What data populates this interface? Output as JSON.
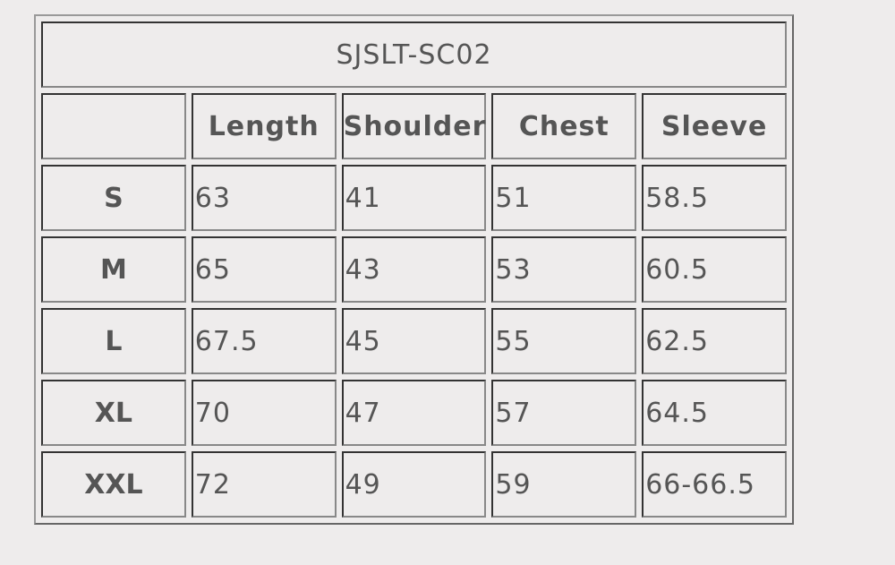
{
  "title": "SJSLT-SC02",
  "headers": [
    "",
    "Length",
    "Shoulder",
    "Chest",
    "Sleeve"
  ],
  "rows": [
    {
      "size": "S",
      "values": [
        "63",
        "41",
        "51",
        "58.5"
      ]
    },
    {
      "size": "M",
      "values": [
        "65",
        "43",
        "53",
        "60.5"
      ]
    },
    {
      "size": "L",
      "values": [
        "67.5",
        "45",
        "55",
        "62.5"
      ]
    },
    {
      "size": "XL",
      "values": [
        "70",
        "47",
        "57",
        "64.5"
      ]
    },
    {
      "size": "XXL",
      "values": [
        "72",
        "49",
        "59",
        "66-66.5"
      ]
    }
  ]
}
